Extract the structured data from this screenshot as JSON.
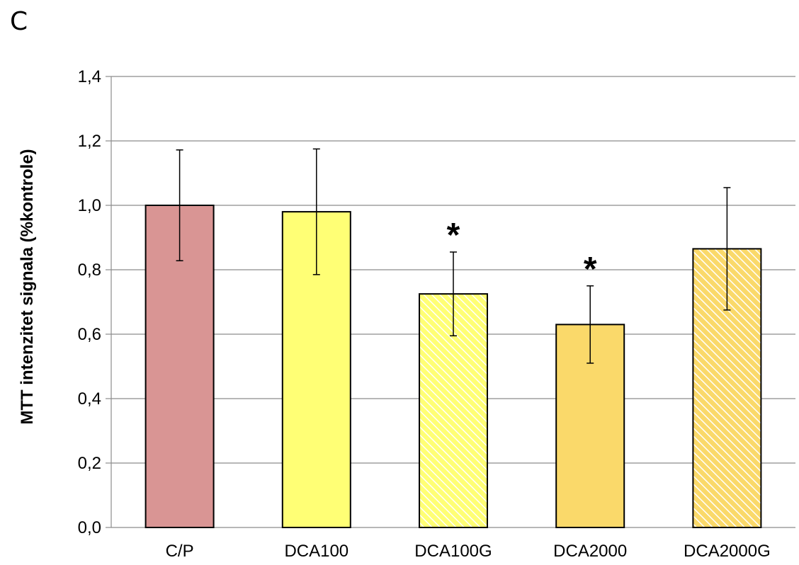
{
  "panel_label": "C",
  "chart_data": {
    "type": "bar",
    "title": "",
    "xlabel": "",
    "ylabel": "MTT intenzitet signala (%kontrole)",
    "ylim": [
      0,
      1.4
    ],
    "yticks": [
      "0,0",
      "0,2",
      "0,4",
      "0,6",
      "0,8",
      "1,0",
      "1,2",
      "1,4"
    ],
    "ytick_values": [
      0,
      0.2,
      0.4,
      0.6,
      0.8,
      1.0,
      1.2,
      1.4
    ],
    "grid": true,
    "categories": [
      "C/P",
      "DCA100",
      "DCA100G",
      "DCA2000",
      "DCA2000G"
    ],
    "values": [
      1.0,
      0.98,
      0.725,
      0.63,
      0.865
    ],
    "error": [
      0.172,
      0.195,
      0.13,
      0.12,
      0.19
    ],
    "colors": [
      "#d99594",
      "#ffff75",
      "#ffff75",
      "#fad96a",
      "#fad96a"
    ],
    "hatched": [
      false,
      false,
      true,
      false,
      true
    ],
    "significance": [
      "",
      "",
      "*",
      "*",
      ""
    ]
  }
}
